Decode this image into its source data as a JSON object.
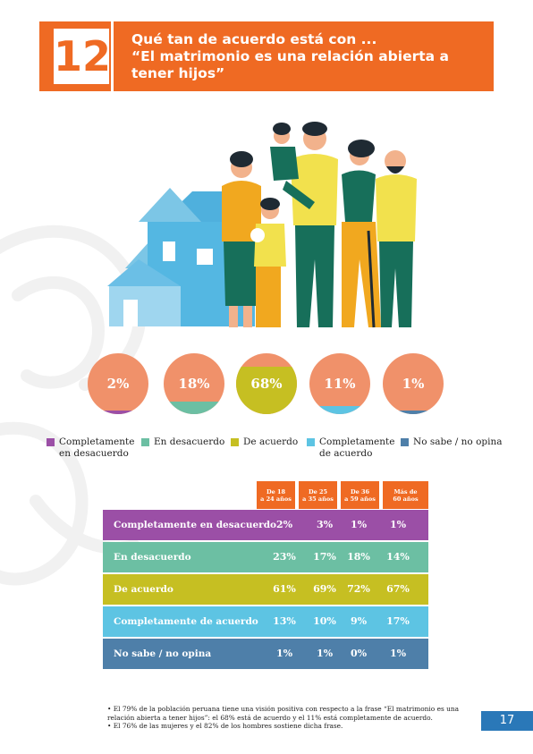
{
  "section_number": "12",
  "title_lines": [
    "Qué tan de acuerdo está con ...",
    "“El matrimonio es una relación abierta a",
    "tener hijos”"
  ],
  "colors": {
    "orange": "#ef6a23",
    "circle_orange": "#f0916a",
    "purple": "#9b4fa6",
    "teal": "#6cbfa3",
    "olive": "#c6bf22",
    "sky": "#5dc4e3",
    "steel": "#4e7fa9",
    "blue_badge": "#2a78b8"
  },
  "chart_data": {
    "type": "table",
    "categories": [
      "Completamente en desacuerdo",
      "En desacuerdo",
      "De acuerdo",
      "Completamente de acuerdo",
      "No sabe / no opina"
    ],
    "overall": [
      2,
      18,
      68,
      11,
      1
    ],
    "overall_labels": [
      "2%",
      "18%",
      "68%",
      "11%",
      "1%"
    ],
    "legend": [
      "Completamente en desacuerdo",
      "En desacuerdo",
      "De acuerdo",
      "Completamente de acuerdo",
      "No sabe / no opina"
    ],
    "legend_lines": [
      [
        "Completamente",
        "en desacuerdo"
      ],
      [
        "En desacuerdo"
      ],
      [
        "De acuerdo"
      ],
      [
        "Completamente",
        "de acuerdo"
      ],
      [
        "No sabe / no opina"
      ]
    ],
    "columns": [
      [
        "De 18",
        "a 24 años"
      ],
      [
        "De 25",
        "a 35 años"
      ],
      [
        "De 36",
        "a 59 años"
      ],
      [
        "Más de",
        "60 años"
      ]
    ],
    "series": [
      {
        "name": "De 18 a 24 años",
        "values": [
          2,
          23,
          61,
          13,
          1
        ]
      },
      {
        "name": "De 25 a 35 años",
        "values": [
          3,
          17,
          69,
          10,
          1
        ]
      },
      {
        "name": "De 36 a 59 años",
        "values": [
          1,
          18,
          72,
          9,
          0
        ]
      },
      {
        "name": "Más de 60 años",
        "values": [
          1,
          14,
          67,
          17,
          1
        ]
      }
    ],
    "rows": [
      {
        "label": "Completamente en desacuerdo",
        "cells": [
          "2%",
          "3%",
          "1%",
          "1%"
        ]
      },
      {
        "label": "En desacuerdo",
        "cells": [
          "23%",
          "17%",
          "18%",
          "14%"
        ]
      },
      {
        "label": "De acuerdo",
        "cells": [
          "61%",
          "69%",
          "72%",
          "67%"
        ]
      },
      {
        "label": "Completamente de acuerdo",
        "cells": [
          "13%",
          "10%",
          "9%",
          "17%"
        ]
      },
      {
        "label": "No sabe / no opina",
        "cells": [
          "1%",
          "1%",
          "0%",
          "1%"
        ]
      }
    ]
  },
  "notes": [
    "• El 79% de la población peruana tiene una visión positiva con respecto a la frase “El matrimonio es una relación abierta a tener hijos”: el 68% está de acuerdo y el 11% está completamente de acuerdo.",
    "• El 76% de las mujeres y el 82% de los hombres sostiene dicha frase."
  ],
  "page_number": "17"
}
